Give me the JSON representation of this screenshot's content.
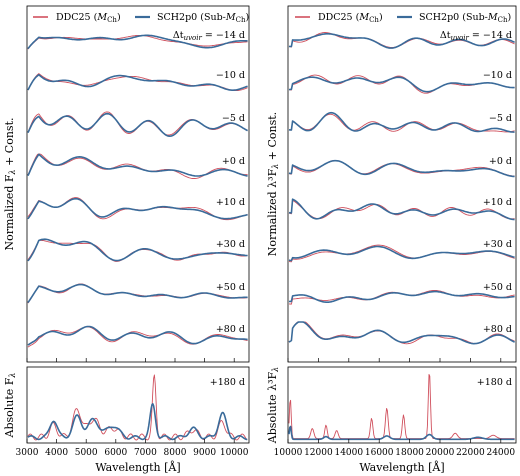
{
  "colors": {
    "series_a": "#d0505d",
    "series_b": "#3a6b9a",
    "axes": "#000000"
  },
  "chart_data": [
    {
      "type": "line",
      "panel": "optical",
      "legend": [
        "DDC25 (M_Ch)",
        "SCH2p0 (Sub-M_Ch)"
      ],
      "legend_position": "top",
      "epoch_labels": [
        "Δt_uvoir = −14 d",
        "−10 d",
        "−5 d",
        "+0 d",
        "+10 d",
        "+30 d",
        "+50 d",
        "+80 d"
      ],
      "ylabel": "Normalized F_λ + Const.",
      "xlim": [
        3000,
        10500
      ],
      "x_ticks": [],
      "series": [
        {
          "name": "DDC25 (M_Ch)"
        },
        {
          "name": "SCH2p0 (Sub-M_Ch)"
        }
      ],
      "grid": false
    },
    {
      "type": "line",
      "panel": "optical-nebular",
      "epoch_label": "+180 d",
      "ylabel": "Absolute F_λ",
      "xlabel": "Wavelength [Å]",
      "xlim": [
        3000,
        10500
      ],
      "x_ticks": [
        "3000",
        "4000",
        "5000",
        "6000",
        "7000",
        "8000",
        "9000",
        "10000"
      ],
      "peaks": [
        {
          "x": 4700,
          "DDC25": 0.45,
          "SCH2p0": 0.35
        },
        {
          "x": 5250,
          "DDC25": 0.35,
          "SCH2p0": 0.3
        },
        {
          "x": 7300,
          "DDC25": 1.0,
          "SCH2p0": 0.55
        },
        {
          "x": 9600,
          "DDC25": 0.25,
          "SCH2p0": 0.4
        }
      ],
      "grid": false
    },
    {
      "type": "line",
      "panel": "near-infrared",
      "legend": [
        "DDC25 (M_Ch)",
        "SCH2p0 (Sub-M_Ch)"
      ],
      "legend_position": "top",
      "epoch_labels": [
        "Δt_uvoir = −14 d",
        "−10 d",
        "−5 d",
        "+0 d",
        "+10 d",
        "+30 d",
        "+50 d",
        "+80 d"
      ],
      "ylabel": "Normalized λ³F_λ + Const.",
      "xlim": [
        10000,
        25000
      ],
      "series": [
        {
          "name": "DDC25 (M_Ch)"
        },
        {
          "name": "SCH2p0 (Sub-M_Ch)"
        }
      ],
      "grid": false
    },
    {
      "type": "line",
      "panel": "near-infrared-nebular",
      "epoch_label": "+180 d",
      "ylabel": "Absolute λ³F_λ",
      "xlabel": "Wavelength [Å]",
      "xlim": [
        10000,
        25000
      ],
      "x_ticks": [
        "10000",
        "12000",
        "14000",
        "16000",
        "18000",
        "20000",
        "22000",
        "24000"
      ],
      "peaks": [
        {
          "x": 10200,
          "DDC25": 0.6,
          "SCH2p0": 0.2
        },
        {
          "x": 16500,
          "DDC25": 0.45,
          "SCH2p0": 0.05
        },
        {
          "x": 19300,
          "DDC25": 1.0,
          "SCH2p0": 0.08
        }
      ],
      "grid": false
    }
  ],
  "text": {
    "legend_a": "DDC25 (",
    "legend_a_sub": "M",
    "legend_a_subsub": "Ch",
    "legend_b": "SCH2p0 (Sub-",
    "legend_b_sub": "M",
    "legend_b_subsub": "Ch",
    "epoch0_prefix": "Δt",
    "epoch0_sub": "uvoir",
    "epoch0_value": " = −14 d",
    "epochs": [
      "−10 d",
      "−5 d",
      "+0 d",
      "+10 d",
      "+30 d",
      "+50 d",
      "+80 d"
    ],
    "neb_epoch": "+180 d",
    "ylab_left": "Normalized F",
    "ylab_left_sub": "λ",
    "ylab_left_tail": " + Const.",
    "ylab_right": "Normalized λ³F",
    "ylab_right_sub": "λ",
    "ylab_right_tail": " + Const.",
    "ylab_left_neb": "Absolute F",
    "ylab_left_neb_sub": "λ",
    "ylab_right_neb": "Absolute λ³F",
    "ylab_right_neb_sub": "λ",
    "xlabel": "Wavelength [Å]",
    "xticks_left": [
      "3000",
      "4000",
      "5000",
      "6000",
      "7000",
      "8000",
      "9000",
      "10000"
    ],
    "xticks_right": [
      "10000",
      "12000",
      "14000",
      "16000",
      "18000",
      "20000",
      "22000",
      "24000"
    ]
  }
}
